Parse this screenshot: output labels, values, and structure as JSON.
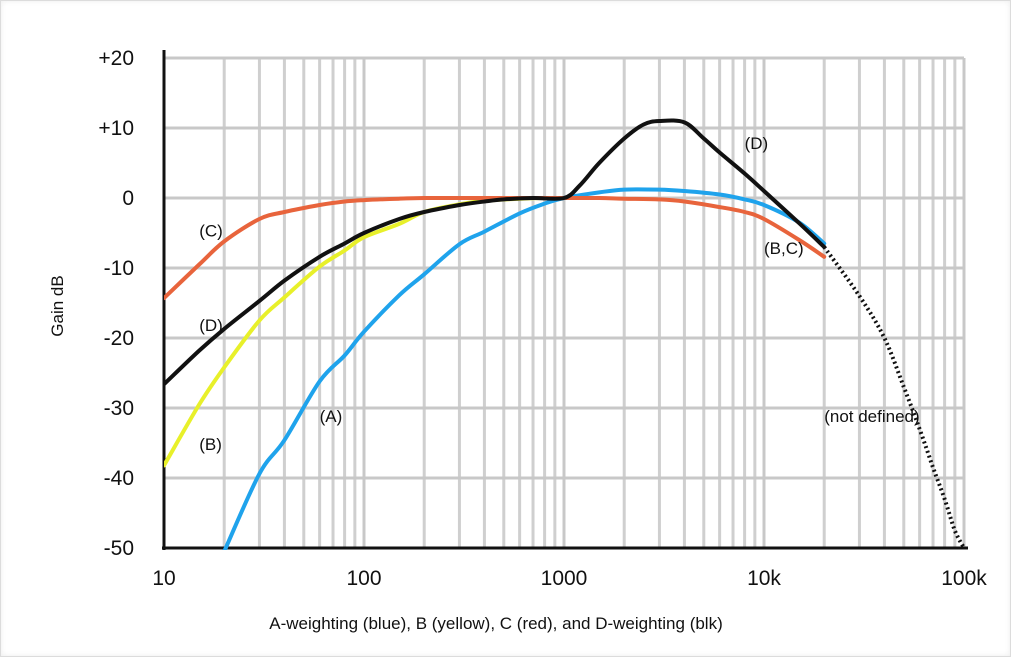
{
  "chart_data": {
    "type": "line",
    "title": "",
    "xlabel": "A-weighting (blue), B (yellow), C (red), and D-weighting (blk)",
    "ylabel": "Gain dB",
    "x_scale": "log",
    "xlim": [
      10,
      100000
    ],
    "ylim": [
      -50,
      20
    ],
    "x_ticks": [
      10,
      100,
      1000,
      10000,
      100000
    ],
    "x_tick_labels": [
      "10",
      "100",
      "1000",
      "10k",
      "100k"
    ],
    "y_ticks": [
      20,
      10,
      0,
      -10,
      -20,
      -30,
      -40,
      -50
    ],
    "y_tick_labels": [
      "+20",
      "+10",
      "0",
      "-10",
      "-20",
      "-30",
      "-40",
      "-50"
    ],
    "grid": true,
    "series": [
      {
        "label": "(A)",
        "color": "#1fa3ec",
        "x": [
          20,
          30,
          40,
          60,
          80,
          100,
          150,
          200,
          300,
          400,
          600,
          800,
          1000,
          1500,
          2000,
          3000,
          4000,
          6000,
          8000,
          10000,
          15000,
          20000
        ],
        "y": [
          -50.5,
          -39.4,
          -34.6,
          -26.2,
          -22.5,
          -19.1,
          -13.9,
          -10.9,
          -6.6,
          -4.8,
          -2.2,
          -0.8,
          0.0,
          0.8,
          1.2,
          1.2,
          1.0,
          0.5,
          -0.2,
          -1.0,
          -3.5,
          -6.5
        ]
      },
      {
        "label": "(B)",
        "color": "#e8f02a",
        "x": [
          10,
          15,
          20,
          30,
          40,
          60,
          80,
          100,
          150,
          200,
          300,
          400,
          600,
          800,
          1000
        ],
        "y": [
          -38.2,
          -29.5,
          -24.2,
          -17.5,
          -14.2,
          -9.8,
          -7.5,
          -5.6,
          -3.7,
          -2.0,
          -0.9,
          -0.4,
          -0.1,
          0.0,
          0.0
        ]
      },
      {
        "label": "(B,C)",
        "color": "#e8643c",
        "x": [
          10,
          15,
          20,
          30,
          40,
          60,
          80,
          100,
          150,
          200,
          300,
          500,
          800,
          1000,
          1500,
          2000,
          3000,
          4000,
          6000,
          8000,
          10000,
          15000,
          20000
        ],
        "y": [
          -14.3,
          -9.5,
          -6.2,
          -3.0,
          -2.0,
          -1.0,
          -0.5,
          -0.3,
          -0.1,
          0.0,
          0.0,
          0.0,
          0.0,
          0.0,
          0.0,
          -0.1,
          -0.2,
          -0.5,
          -1.3,
          -2.0,
          -3.0,
          -6.0,
          -8.4
        ]
      },
      {
        "label": "(D)",
        "color": "#111111",
        "x": [
          10,
          15,
          20,
          30,
          40,
          60,
          80,
          100,
          150,
          200,
          300,
          400,
          500,
          700,
          1000,
          1200,
          1500,
          2000,
          2500,
          3000,
          4000,
          5000,
          6000,
          8000,
          10000,
          15000,
          20000
        ],
        "y": [
          -26.6,
          -21.8,
          -18.7,
          -14.7,
          -11.8,
          -8.4,
          -6.5,
          -5.0,
          -3.0,
          -2.0,
          -1.0,
          -0.5,
          -0.2,
          0.0,
          0.0,
          1.8,
          5.0,
          8.5,
          10.5,
          11.0,
          10.8,
          8.5,
          6.5,
          3.5,
          1.0,
          -3.6,
          -7.0
        ]
      },
      {
        "label": "(not defined)",
        "color": "#111111",
        "style": "dotted",
        "x": [
          20000,
          30000,
          40000,
          50000,
          60000,
          70000,
          80000,
          90000,
          100000
        ],
        "y": [
          -7.0,
          -14.0,
          -20.0,
          -27.0,
          -33.0,
          -38.5,
          -43.0,
          -47.5,
          -50.0
        ]
      }
    ],
    "annotations": [
      {
        "text": "(D)",
        "x": 8000,
        "y": 7
      },
      {
        "text": "(B,C)",
        "x": 10000,
        "y": -8
      },
      {
        "text": "(C)",
        "x": 15,
        "y": -5.5
      },
      {
        "text": "(D)",
        "x": 15,
        "y": -19
      },
      {
        "text": "(A)",
        "x": 60,
        "y": -32
      },
      {
        "text": "(B)",
        "x": 15,
        "y": -36
      },
      {
        "text": "(not defined)",
        "x": 20000,
        "y": -32
      }
    ]
  }
}
